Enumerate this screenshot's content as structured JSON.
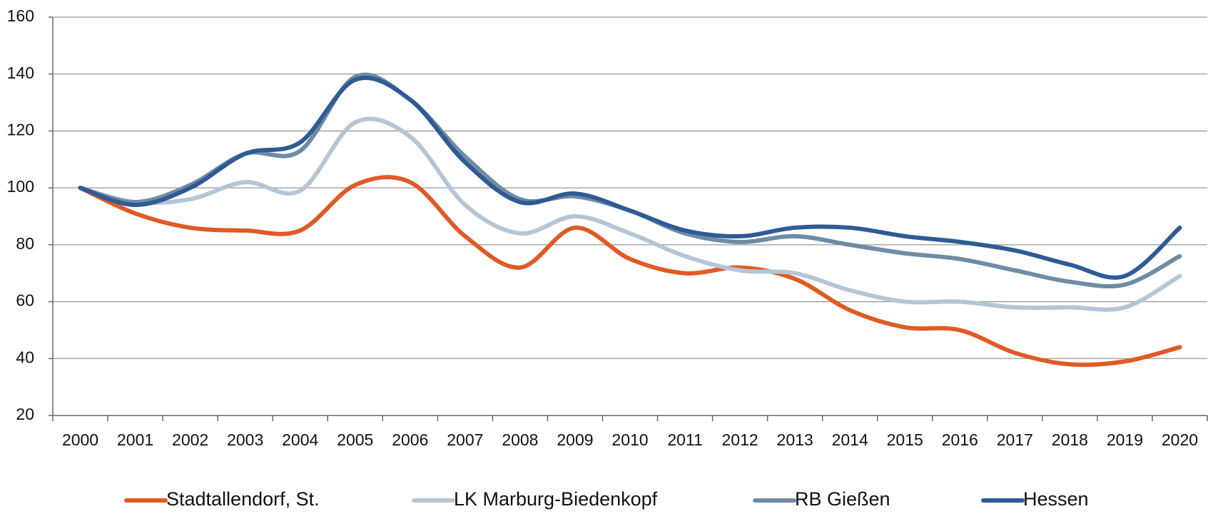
{
  "chart_data": {
    "type": "line",
    "smooth": true,
    "grid": true,
    "categories": [
      "2000",
      "2001",
      "2002",
      "2003",
      "2004",
      "2005",
      "2006",
      "2007",
      "2008",
      "2009",
      "2010",
      "2011",
      "2012",
      "2013",
      "2014",
      "2015",
      "2016",
      "2017",
      "2018",
      "2019",
      "2020"
    ],
    "ylim": [
      20,
      160
    ],
    "yticks": [
      20,
      40,
      60,
      80,
      100,
      120,
      140,
      160
    ],
    "legend": "bottom",
    "series": [
      {
        "name": "Stadtallendorf, St.",
        "color": "#e05a26",
        "values": [
          100,
          91,
          86,
          85,
          85,
          101,
          102,
          83,
          72,
          86,
          75,
          70,
          72,
          68,
          57,
          51,
          50,
          42,
          38,
          39,
          44
        ]
      },
      {
        "name": "LK Marburg-Biedenkopf",
        "color": "#b4c6d6",
        "values": [
          100,
          95,
          96,
          102,
          99,
          123,
          118,
          94,
          84,
          90,
          84,
          76,
          71,
          70,
          64,
          60,
          60,
          58,
          58,
          58,
          69
        ]
      },
      {
        "name": "RB Gießen",
        "color": "#6e8ca3",
        "values": [
          100,
          95,
          101,
          112,
          113,
          139,
          131,
          111,
          96,
          97,
          92,
          84,
          81,
          83,
          80,
          77,
          75,
          71,
          67,
          66,
          76
        ]
      },
      {
        "name": "Hessen",
        "color": "#2f5b94",
        "values": [
          100,
          94,
          100,
          112,
          116,
          138,
          131,
          109,
          95,
          98,
          92,
          85,
          83,
          86,
          86,
          83,
          81,
          78,
          73,
          69,
          86
        ]
      }
    ]
  }
}
